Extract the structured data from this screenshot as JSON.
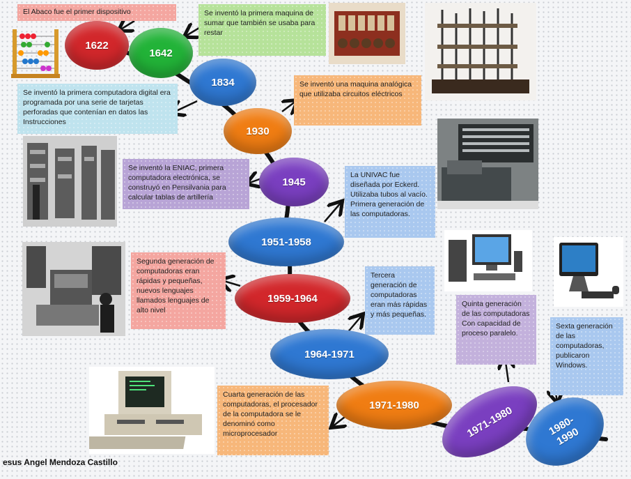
{
  "author": "esus Angel Mendoza Castillo",
  "nodes": [
    {
      "label": "1622"
    },
    {
      "label": "1642"
    },
    {
      "label": "1834"
    },
    {
      "label": "1930"
    },
    {
      "label": "1945"
    },
    {
      "label": "1951-1958"
    },
    {
      "label": "1959-1964"
    },
    {
      "label": "1964-1971"
    },
    {
      "label": "1971-1980"
    },
    {
      "label": "1971-1980"
    },
    {
      "label": "1980-\n1990"
    }
  ],
  "notes": [
    "El Abaco fue el primer dispositivo",
    "Se inventó la primera maquina de sumar que también se usaba para restar",
    "Se inventó la primera computadora digital era programada por una serie de tarjetas perforadas que contenían en datos las Instrucciones",
    "Se inventó una maquina analógica que utilizaba circuitos eléctricos",
    "Se inventó la ENIAC, primera computadora electrónica, se construyó en Pensilvania para calcular tablas de artillería",
    "La UNIVAC fue diseñada por Eckerd. Utilizaba tubos al vacío. Primera generación de las computadoras.",
    "Segunda generación de computadoras eran rápidas y pequeñas, nuevos lenguajes llamados lenguajes de alto nivel",
    "Tercera generación de computadoras eran más rápidas y más pequeñas.",
    "Cuarta generación de las computadoras, el procesador de la computadora se le denominó como microprocesador",
    "Quinta generación de las computadoras Con capacidad de proceso paralelo.",
    "Sexta generación de las computadoras, publicaron Windows."
  ],
  "colors": {
    "red": "#d2272b",
    "green": "#22b338",
    "blue": "#2f78d2",
    "orange": "#f07d13",
    "purple": "#7a3fc0"
  }
}
